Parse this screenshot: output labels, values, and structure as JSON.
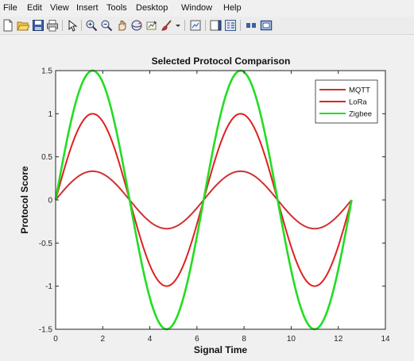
{
  "menu": {
    "items": [
      "File",
      "Edit",
      "View",
      "Insert",
      "Tools",
      "Desktop",
      "Window",
      "Help"
    ]
  },
  "toolbar": {
    "buttons": [
      "new-figure-icon",
      "open-file-icon",
      "save-icon",
      "print-icon",
      "edit-plot-icon",
      "zoom-in-icon",
      "zoom-out-icon",
      "pan-icon",
      "rotate-3d-icon",
      "data-cursor-icon",
      "brush-icon",
      "brush-dropdown-icon",
      "link-plot-icon",
      "insert-colorbar-icon",
      "insert-legend-icon",
      "hide-plot-tools-icon",
      "show-plot-tools-icon"
    ]
  },
  "colors": {
    "mqtt": "#d03030",
    "lora": "#e02020",
    "zigbee": "#22dd22"
  },
  "chart_data": {
    "type": "line",
    "title": "Selected Protocol Comparison",
    "xlabel": "Signal Time",
    "ylabel": "Protocol Score",
    "xlim": [
      0,
      14
    ],
    "ylim": [
      -1.5,
      1.5
    ],
    "xticks": [
      0,
      2,
      4,
      6,
      8,
      10,
      12,
      14
    ],
    "yticks": [
      -1.5,
      -1,
      -0.5,
      0,
      0.5,
      1,
      1.5
    ],
    "xtick_labels": [
      "0",
      "2",
      "4",
      "6",
      "8",
      "10",
      "12",
      "14"
    ],
    "ytick_labels": [
      "-1.5",
      "-1",
      "-0.5",
      "0",
      "0.5",
      "1",
      "1.5"
    ],
    "grid": false,
    "legend": "top-right",
    "x_range": [
      0,
      12.566
    ],
    "series": [
      {
        "name": "MQTT",
        "formula": "0.333*sin(x)",
        "amplitude": 0.333,
        "color": "#d03030"
      },
      {
        "name": "LoRa",
        "formula": "1.0*sin(x)",
        "amplitude": 1.0,
        "color": "#e02020"
      },
      {
        "name": "Zigbee",
        "formula": "1.5*sin(x)",
        "amplitude": 1.5,
        "color": "#22dd22"
      }
    ]
  }
}
